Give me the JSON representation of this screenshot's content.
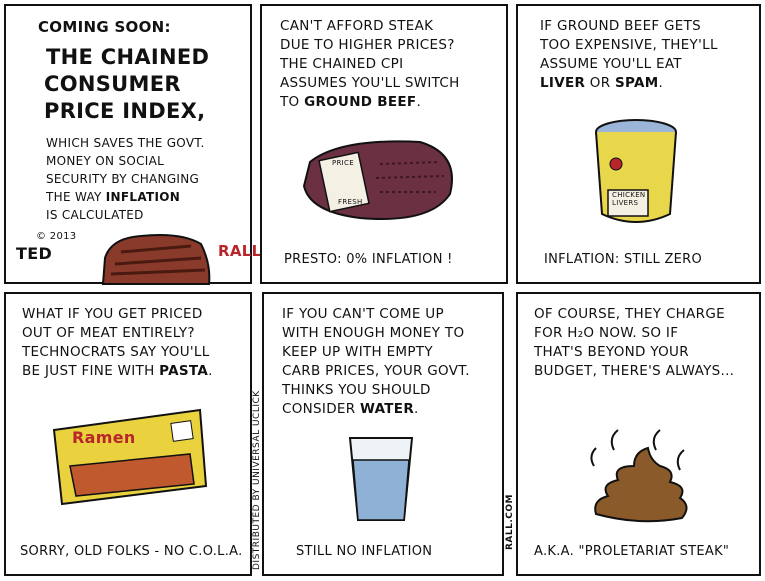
{
  "comic": {
    "credit": "Distributed by Universal Uclick",
    "site": "RALL.COM",
    "signature_ted": "TED",
    "signature_year": "© 2013",
    "signature_rall": "RALL"
  },
  "panel1": {
    "heading_1": "Coming Soon:",
    "heading_2": "The Chained",
    "heading_3": "Consumer",
    "heading_4": "Price Index,",
    "body_1": "which saves the Govt.",
    "body_2": "money on Social",
    "body_3": "Security by changing",
    "body_4a": "the way ",
    "body_4b": "Inflation",
    "body_5": "is calculated"
  },
  "panel2": {
    "line1": "Can't afford steak",
    "line2": "due to higher prices?",
    "line3": "The chained CPI",
    "line4": "assumes you'll switch",
    "line5a": "to ",
    "line5b": "Ground Beef",
    "line5c": ".",
    "label_top": "Price",
    "label_bottom": "fresh",
    "caption": "Presto: 0% Inflation !"
  },
  "panel3": {
    "line1": "If ground beef gets",
    "line2": "too expensive, they'll",
    "line3": "assume you'll eat",
    "line4a": "Liver",
    "line4b": " or ",
    "line4c": "Spam",
    "line4d": ".",
    "can_label": "Chicken Livers",
    "caption": "Inflation: Still Zero"
  },
  "panel4": {
    "line1": "What if you get priced",
    "line2": "out of meat entirely?",
    "line3": "Technocrats say you'll",
    "line4a": "be just fine with ",
    "line4b": "Pasta",
    "line4c": ".",
    "package_brand": "Ramen",
    "caption": "Sorry, old folks - no C.O.L.A."
  },
  "panel5": {
    "line1": "If you can't come up",
    "line2": "with enough money to",
    "line3": "keep up with empty",
    "line4": "carb prices, your govt.",
    "line5": "thinks you should",
    "line6a": "consider ",
    "line6b": "Water",
    "line6c": ".",
    "caption": "Still no inflation"
  },
  "panel6": {
    "line1": "Of course, they charge",
    "line2": "for H₂O now. So if",
    "line3": "that's beyond your",
    "line4": "budget, there's always...",
    "caption": "A.K.A. \"Proletariat Steak\""
  }
}
